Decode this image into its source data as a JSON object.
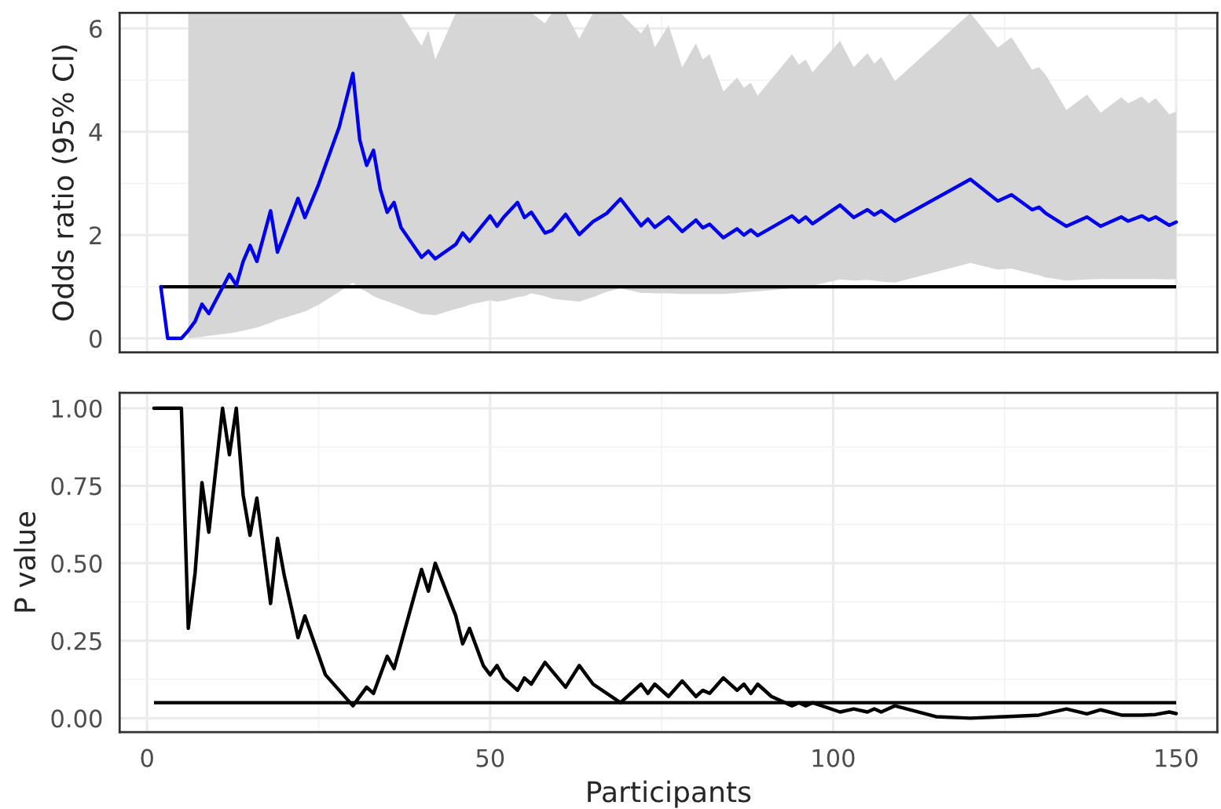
{
  "chart_data": [
    {
      "type": "line",
      "ylabel": "Odds ratio (95% CI)",
      "xlim": [
        -4,
        156
      ],
      "ylim": [
        -0.27,
        6.3
      ],
      "xticks": [
        0,
        50,
        100,
        150
      ],
      "yticks": [
        0,
        2,
        4,
        6
      ],
      "tick_labels": "y",
      "grid": true,
      "line_style": "solid",
      "ref_lines": [
        {
          "axis": "y",
          "value": 1,
          "label": null,
          "color": "#000000",
          "line_style": "solid"
        }
      ],
      "series": [
        {
          "color": "#0000ee",
          "x": [
            2,
            3,
            5,
            6,
            7,
            8,
            9,
            12,
            13,
            14,
            15,
            16,
            18,
            19,
            22,
            23,
            25,
            28,
            30,
            31,
            32,
            33,
            34,
            35,
            36,
            37,
            40,
            41,
            42,
            45,
            46,
            47,
            50,
            51,
            52,
            54,
            55,
            56,
            58,
            59,
            61,
            63,
            65,
            67,
            69,
            72,
            73,
            74,
            76,
            78,
            80,
            81,
            82,
            84,
            86,
            87,
            88,
            89,
            94,
            95,
            96,
            97,
            101,
            103,
            105,
            106,
            107,
            109,
            120,
            124,
            126,
            129,
            130,
            131,
            134,
            137,
            139,
            142,
            143,
            145,
            146,
            147,
            149,
            150
          ],
          "values": [
            1,
            0,
            0,
            0.15,
            0.33,
            0.66,
            0.48,
            1.24,
            1.03,
            1.49,
            1.8,
            1.49,
            2.47,
            1.67,
            2.71,
            2.34,
            2.98,
            4.09,
            5.13,
            3.84,
            3.35,
            3.64,
            2.88,
            2.44,
            2.63,
            2.15,
            1.57,
            1.69,
            1.54,
            1.82,
            2.04,
            1.88,
            2.37,
            2.17,
            2.35,
            2.63,
            2.34,
            2.44,
            2.04,
            2.09,
            2.4,
            2.01,
            2.26,
            2.42,
            2.7,
            2.18,
            2.31,
            2.15,
            2.35,
            2.07,
            2.29,
            2.14,
            2.21,
            1.95,
            2.12,
            2.0,
            2.1,
            1.99,
            2.37,
            2.25,
            2.35,
            2.22,
            2.58,
            2.34,
            2.49,
            2.39,
            2.47,
            2.27,
            3.08,
            2.66,
            2.78,
            2.49,
            2.54,
            2.42,
            2.17,
            2.35,
            2.17,
            2.35,
            2.27,
            2.37,
            2.29,
            2.35,
            2.19,
            2.25
          ],
          "lower": [
            null,
            null,
            null,
            0.0,
            0.02,
            0.03,
            0.05,
            0.1,
            0.12,
            0.15,
            0.18,
            0.21,
            0.3,
            0.36,
            0.48,
            0.52,
            0.65,
            0.9,
            1.08,
            0.97,
            0.9,
            0.82,
            0.76,
            0.72,
            0.67,
            0.62,
            0.47,
            0.46,
            0.45,
            0.57,
            0.6,
            0.65,
            0.74,
            0.71,
            0.73,
            0.8,
            0.82,
            0.87,
            0.82,
            0.77,
            0.74,
            0.71,
            0.8,
            0.9,
            0.97,
            0.88,
            0.88,
            0.87,
            0.87,
            0.86,
            0.86,
            0.86,
            0.86,
            0.86,
            0.88,
            0.89,
            0.9,
            0.91,
            0.97,
            0.98,
            1.0,
            1.02,
            1.14,
            1.12,
            1.13,
            1.12,
            1.1,
            1.08,
            1.46,
            1.33,
            1.35,
            1.25,
            1.22,
            1.18,
            1.12,
            1.14,
            1.15,
            1.15,
            1.15,
            1.15,
            1.15,
            1.15,
            1.14,
            1.15
          ],
          "upper": [
            null,
            null,
            null,
            6.3,
            6.3,
            6.3,
            6.3,
            6.3,
            6.3,
            6.3,
            6.3,
            6.3,
            6.3,
            6.3,
            6.3,
            6.3,
            6.3,
            6.3,
            6.3,
            6.3,
            6.3,
            6.3,
            6.3,
            6.3,
            6.3,
            6.3,
            5.66,
            5.96,
            5.4,
            6.3,
            6.3,
            6.3,
            6.3,
            6.3,
            6.3,
            6.3,
            6.3,
            6.3,
            6.1,
            6.3,
            6.3,
            5.8,
            6.3,
            6.3,
            6.3,
            5.9,
            6.1,
            5.63,
            6.06,
            5.25,
            5.71,
            5.4,
            5.5,
            4.78,
            5.05,
            4.85,
            4.95,
            4.7,
            5.5,
            5.3,
            5.4,
            5.15,
            5.76,
            5.25,
            5.52,
            5.32,
            5.45,
            4.98,
            6.3,
            5.63,
            5.83,
            5.2,
            5.25,
            5.1,
            4.42,
            4.72,
            4.37,
            4.67,
            4.55,
            4.68,
            4.55,
            4.65,
            4.34,
            4.39
          ]
        }
      ]
    },
    {
      "type": "line",
      "xlabel": "Participants",
      "ylabel": "P value",
      "xlim": [
        -4,
        156
      ],
      "ylim": [
        -0.045,
        1.05
      ],
      "xticks": [
        0,
        50,
        100,
        150
      ],
      "yticks": [
        {
          "value": 0,
          "label": "0.00"
        },
        {
          "value": 0.25,
          "label": "0.25"
        },
        {
          "value": 0.5,
          "label": "0.50"
        },
        {
          "value": 0.75,
          "label": "0.75"
        },
        {
          "value": 1,
          "label": "1.00"
        }
      ],
      "grid": true,
      "line_style": "solid",
      "ref_lines": [
        {
          "axis": "y",
          "value": 0.05,
          "label": null,
          "color": "#000000",
          "line_style": "solid"
        }
      ],
      "series": [
        {
          "color": "#000000",
          "x": [
            1,
            5,
            6,
            7,
            8,
            9,
            10,
            11,
            12,
            13,
            14,
            15,
            16,
            18,
            19,
            20,
            22,
            23,
            26,
            28,
            30,
            32,
            33,
            35,
            36,
            40,
            41,
            42,
            45,
            46,
            47,
            49,
            50,
            51,
            52,
            54,
            55,
            56,
            58,
            61,
            63,
            65,
            69,
            72,
            73,
            74,
            76,
            78,
            80,
            81,
            82,
            84,
            86,
            87,
            88,
            89,
            91,
            94,
            95,
            96,
            97,
            101,
            103,
            105,
            106,
            107,
            109,
            115,
            120,
            125,
            130,
            134,
            137,
            139,
            142,
            145,
            147,
            149,
            150
          ],
          "values": [
            1.0,
            1.0,
            0.29,
            0.47,
            0.76,
            0.6,
            0.8,
            1.0,
            0.85,
            1.0,
            0.72,
            0.59,
            0.71,
            0.37,
            0.58,
            0.46,
            0.26,
            0.33,
            0.14,
            0.09,
            0.04,
            0.1,
            0.08,
            0.2,
            0.16,
            0.48,
            0.41,
            0.5,
            0.33,
            0.24,
            0.29,
            0.17,
            0.14,
            0.17,
            0.13,
            0.09,
            0.13,
            0.11,
            0.18,
            0.1,
            0.17,
            0.11,
            0.05,
            0.11,
            0.08,
            0.11,
            0.07,
            0.12,
            0.07,
            0.09,
            0.08,
            0.13,
            0.09,
            0.11,
            0.08,
            0.11,
            0.07,
            0.04,
            0.05,
            0.04,
            0.05,
            0.02,
            0.03,
            0.02,
            0.03,
            0.02,
            0.04,
            0.005,
            0.0,
            0.005,
            0.01,
            0.03,
            0.014,
            0.027,
            0.01,
            0.01,
            0.012,
            0.02,
            0.015
          ]
        }
      ]
    }
  ]
}
